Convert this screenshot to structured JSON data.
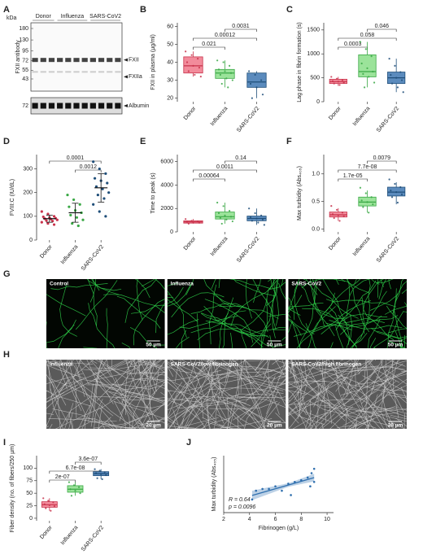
{
  "blot": {
    "panel": "A",
    "unit": "kDa",
    "antibody": "FXII antibody",
    "groups": [
      "Donor",
      "Influenza",
      "SARS-CoV2"
    ],
    "markers": [
      180,
      130,
      95,
      72,
      55,
      43
    ],
    "albumin_marker": 72,
    "bands": [
      "FXII",
      "FXIIa",
      "Albumin"
    ]
  },
  "chart_data": [
    {
      "type": "box",
      "panel": "B",
      "ylabel": "FXII in plasma (µg/ml)",
      "categories": [
        "Donor",
        "Influenza",
        "SARS-CoV2"
      ],
      "colors": [
        "#c8324b",
        "#3aa845",
        "#1f4e79"
      ],
      "fills": [
        "#f28b9b",
        "#9be39a",
        "#5b8bbd"
      ],
      "ylim": [
        18,
        62
      ],
      "yticks": [
        20,
        30,
        40,
        50,
        60
      ],
      "boxes": [
        {
          "min": 32,
          "q1": 34,
          "median": 38,
          "q3": 43,
          "max": 46,
          "points": [
            46,
            44,
            42,
            40,
            38,
            37,
            35,
            33,
            32
          ]
        },
        {
          "min": 26,
          "q1": 31,
          "median": 34,
          "q3": 36,
          "max": 41,
          "points": [
            41,
            40,
            38,
            36,
            35,
            34,
            33,
            31,
            30,
            28,
            26
          ]
        },
        {
          "min": 20,
          "q1": 26,
          "median": 29,
          "q3": 34,
          "max": 35,
          "points": [
            35,
            33,
            30,
            28,
            26,
            22,
            20
          ]
        }
      ],
      "comparisons": [
        {
          "from": "Donor",
          "to": "Influenza",
          "label": "0.021"
        },
        {
          "from": "Donor",
          "to": "SARS-CoV2",
          "label": "0.00012"
        },
        {
          "from": "Influenza",
          "to": "SARS-CoV2",
          "label": "0.0031"
        }
      ]
    },
    {
      "type": "box",
      "panel": "C",
      "ylabel": "Lag phase in fibrin formation (s)",
      "categories": [
        "Donor",
        "Influenza",
        "SARS-CoV2"
      ],
      "colors": [
        "#c8324b",
        "#3aa845",
        "#1f4e79"
      ],
      "fills": [
        "#f28b9b",
        "#9be39a",
        "#5b8bbd"
      ],
      "ylim": [
        0,
        1650
      ],
      "yticks": [
        0,
        500,
        1000,
        1500
      ],
      "boxes": [
        {
          "min": 330,
          "q1": 380,
          "median": 420,
          "q3": 470,
          "max": 520,
          "points": [
            520,
            480,
            450,
            430,
            420,
            400,
            380,
            350
          ]
        },
        {
          "min": 300,
          "q1": 520,
          "median": 630,
          "q3": 980,
          "max": 1250,
          "points": [
            1250,
            1100,
            950,
            800,
            700,
            630,
            580,
            520,
            400,
            300
          ]
        },
        {
          "min": 200,
          "q1": 380,
          "median": 500,
          "q3": 620,
          "max": 900,
          "points": [
            900,
            750,
            620,
            560,
            500,
            450,
            380,
            300,
            200
          ]
        }
      ],
      "comparisons": [
        {
          "from": "Donor",
          "to": "Influenza",
          "label": "0.0003"
        },
        {
          "from": "Donor",
          "to": "SARS-CoV2",
          "label": "0.058"
        },
        {
          "from": "Influenza",
          "to": "SARS-CoV2",
          "label": "0.046"
        }
      ]
    },
    {
      "type": "dot",
      "panel": "D",
      "ylabel": "FVIII:C (IU/dL)",
      "categories": [
        "Donor",
        "Influenza",
        "SARS-CoV2"
      ],
      "colors": [
        "#c8324b",
        "#3aa845",
        "#1f4e79"
      ],
      "ylim": [
        0,
        360
      ],
      "yticks": [
        0,
        100,
        200,
        300
      ],
      "groups": [
        {
          "mean": 90,
          "sd": 15,
          "points": [
            120,
            110,
            100,
            98,
            95,
            92,
            90,
            88,
            85,
            82,
            80,
            75,
            70,
            65
          ]
        },
        {
          "mean": 115,
          "sd": 40,
          "points": [
            190,
            170,
            150,
            140,
            125,
            115,
            105,
            95,
            85,
            70,
            60
          ]
        },
        {
          "mean": 220,
          "sd": 60,
          "points": [
            330,
            300,
            280,
            260,
            250,
            240,
            225,
            215,
            200,
            190,
            175,
            150,
            120,
            100
          ]
        }
      ],
      "comparisons": [
        {
          "from": "Influenza",
          "to": "SARS-CoV2",
          "label": "0.0012"
        },
        {
          "from": "Donor",
          "to": "SARS-CoV2",
          "label": "0.0001"
        }
      ]
    },
    {
      "type": "box",
      "panel": "E",
      "ylabel": "Time to peak (s)",
      "categories": [
        "Donor",
        "Influenza",
        "SARS-CoV2"
      ],
      "colors": [
        "#c8324b",
        "#3aa845",
        "#1f4e79"
      ],
      "fills": [
        "#f28b9b",
        "#9be39a",
        "#5b8bbd"
      ],
      "ylim": [
        0,
        6600
      ],
      "yticks": [
        0,
        2000,
        4000,
        6000
      ],
      "boxes": [
        {
          "min": 700,
          "q1": 750,
          "median": 850,
          "q3": 950,
          "max": 1100,
          "points": [
            1100,
            950,
            900,
            850,
            820,
            780,
            700
          ]
        },
        {
          "min": 700,
          "q1": 1100,
          "median": 1300,
          "q3": 1700,
          "max": 2500,
          "points": [
            2500,
            2200,
            1800,
            1600,
            1400,
            1300,
            1200,
            1050,
            900,
            700
          ]
        },
        {
          "min": 600,
          "q1": 950,
          "median": 1150,
          "q3": 1350,
          "max": 2000,
          "points": [
            2000,
            1600,
            1400,
            1250,
            1150,
            1050,
            950,
            800,
            600
          ]
        }
      ],
      "comparisons": [
        {
          "from": "Donor",
          "to": "Influenza",
          "label": "0.00064"
        },
        {
          "from": "Donor",
          "to": "SARS-CoV2",
          "label": "0.0011"
        },
        {
          "from": "Influenza",
          "to": "SARS-CoV2",
          "label": "0.14"
        }
      ]
    },
    {
      "type": "box",
      "panel": "F",
      "ylabel": "Max turbidity (Abs₄₀₅)",
      "categories": [
        "Donor",
        "Influenza",
        "SARS-CoV2"
      ],
      "colors": [
        "#c8324b",
        "#3aa845",
        "#1f4e79"
      ],
      "fills": [
        "#f28b9b",
        "#9be39a",
        "#5b8bbd"
      ],
      "ylim": [
        -0.05,
        1.35
      ],
      "yticks": [
        {
          "value": 0,
          "label": "0.0"
        },
        0.5,
        {
          "value": 1,
          "label": "1.0"
        }
      ],
      "boxes": [
        {
          "min": 0.15,
          "q1": 0.22,
          "median": 0.26,
          "q3": 0.31,
          "max": 0.38,
          "points": [
            0.42,
            0.35,
            0.3,
            0.27,
            0.25,
            0.23,
            0.2,
            0.15
          ]
        },
        {
          "min": 0.3,
          "q1": 0.42,
          "median": 0.49,
          "q3": 0.58,
          "max": 0.7,
          "points": [
            0.75,
            0.65,
            0.58,
            0.52,
            0.49,
            0.45,
            0.4,
            0.3
          ]
        },
        {
          "min": 0.45,
          "q1": 0.6,
          "median": 0.67,
          "q3": 0.76,
          "max": 0.85,
          "points": [
            0.9,
            0.82,
            0.76,
            0.7,
            0.67,
            0.63,
            0.58,
            0.48
          ]
        }
      ],
      "comparisons": [
        {
          "from": "Donor",
          "to": "Influenza",
          "label": "1.7e-05"
        },
        {
          "from": "Donor",
          "to": "SARS-CoV2",
          "label": "7.7e-08"
        },
        {
          "from": "Influenza",
          "to": "SARS-CoV2",
          "label": "0.0079"
        }
      ]
    },
    {
      "type": "box",
      "panel": "I",
      "ylabel": "Fiber density (no. of fibers/250 µm)",
      "categories": [
        "Donor",
        "Influenza",
        "SARS-CoV2"
      ],
      "colors": [
        "#c8324b",
        "#3aa845",
        "#1f4e79"
      ],
      "fills": [
        "#f28b9b",
        "#9be39a",
        "#5b8bbd"
      ],
      "ylim": [
        -5,
        125
      ],
      "yticks": [
        0,
        25,
        50,
        75,
        100
      ],
      "boxes": [
        {
          "min": 15,
          "q1": 22,
          "median": 27,
          "q3": 33,
          "max": 40,
          "points": [
            40,
            35,
            32,
            28,
            26,
            24,
            20,
            15
          ]
        },
        {
          "min": 45,
          "q1": 52,
          "median": 58,
          "q3": 65,
          "max": 72,
          "points": [
            72,
            66,
            62,
            58,
            55,
            50,
            45
          ]
        },
        {
          "min": 78,
          "q1": 85,
          "median": 89,
          "q3": 93,
          "max": 98,
          "points": [
            98,
            95,
            92,
            90,
            88,
            86,
            80,
            78
          ]
        }
      ],
      "comparisons": [
        {
          "from": "Donor",
          "to": "Influenza",
          "label": "2e-07"
        },
        {
          "from": "Donor",
          "to": "SARS-CoV2",
          "label": "6.7e-08"
        },
        {
          "from": "Influenza",
          "to": "SARS-CoV2",
          "label": "3.6e-07"
        }
      ]
    },
    {
      "type": "scatter",
      "panel": "J",
      "xlabel": "Fibrinogen (g/L)",
      "ylabel": "Max turbidity (Abs₄₀₅)",
      "color": "#2f6fae",
      "band_color": "#8fb3d6",
      "xlim": [
        2,
        10.5
      ],
      "xticks": [
        2,
        4,
        6,
        8,
        10
      ],
      "ylim": [
        0.35,
        1.0
      ],
      "x": [
        4.2,
        4.5,
        5.0,
        5.5,
        6.0,
        6.5,
        7.0,
        7.2,
        7.5,
        8.0,
        8.5,
        8.7,
        8.8,
        9.0,
        9.0
      ],
      "values": [
        0.5,
        0.6,
        0.62,
        0.62,
        0.65,
        0.6,
        0.68,
        0.55,
        0.7,
        0.72,
        0.75,
        0.65,
        0.8,
        0.85,
        0.7
      ],
      "annotations": [
        "R = 0.64",
        "p = 0.0096"
      ]
    }
  ],
  "micrographs": [
    {
      "panel": "G",
      "style": "confocal",
      "images": [
        {
          "label": "Control",
          "scale": "50 µm"
        },
        {
          "label": "Influenza",
          "scale": "50 µm"
        },
        {
          "label": "SARS-CoV2",
          "scale": "50 µm"
        }
      ]
    },
    {
      "panel": "H",
      "style": "sem",
      "images": [
        {
          "label": "Influenza",
          "scale": "20 µm"
        },
        {
          "label": "SARS-CoV2/low fibrinogen",
          "scale": "20 µm"
        },
        {
          "label": "SARS-CoV2/high fibrinogen",
          "scale": "20 µm"
        }
      ]
    }
  ]
}
